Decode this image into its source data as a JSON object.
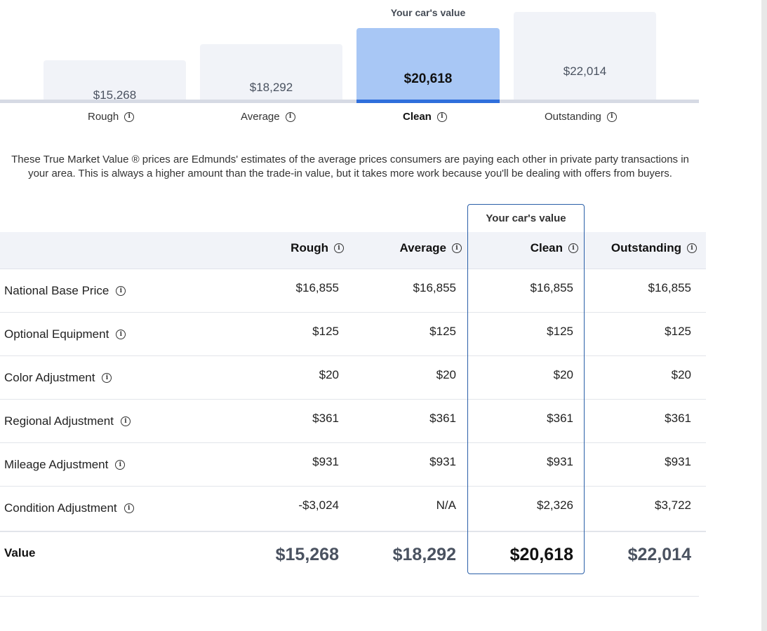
{
  "tiers": {
    "top_label": "Your car's value",
    "items": [
      {
        "label": "Rough",
        "price": "$15,268"
      },
      {
        "label": "Average",
        "price": "$18,292"
      },
      {
        "label": "Clean",
        "price": "$20,618"
      },
      {
        "label": "Outstanding",
        "price": "$22,014"
      }
    ],
    "selected": "Clean"
  },
  "description": "These True Market Value ® prices are Edmunds' estimates of the average prices consumers are paying each other in private party transactions in your area. This is always a higher amount than the trade-in value, but it takes more work because you'll be dealing with offers from buyers.",
  "table": {
    "highlight_label": "Your car's value",
    "columns": [
      "Rough",
      "Average",
      "Clean",
      "Outstanding"
    ],
    "rows": [
      {
        "label": "National Base Price",
        "values": [
          "$16,855",
          "$16,855",
          "$16,855",
          "$16,855"
        ]
      },
      {
        "label": "Optional Equipment",
        "values": [
          "$125",
          "$125",
          "$125",
          "$125"
        ]
      },
      {
        "label": "Color Adjustment",
        "values": [
          "$20",
          "$20",
          "$20",
          "$20"
        ]
      },
      {
        "label": "Regional Adjustment",
        "values": [
          "$361",
          "$361",
          "$361",
          "$361"
        ]
      },
      {
        "label": "Mileage Adjustment",
        "values": [
          "$931",
          "$931",
          "$931",
          "$931"
        ]
      },
      {
        "label": "Condition Adjustment",
        "values": [
          "-$3,024",
          "N/A",
          "$2,326",
          "$3,722"
        ]
      }
    ],
    "value_row": {
      "label": "Value",
      "values": [
        "$15,268",
        "$18,292",
        "$20,618",
        "$22,014"
      ]
    }
  },
  "icons": {
    "info": "info-circle-icon"
  },
  "colors": {
    "selected_bar": "#a8c7f5",
    "selected_underline": "#2f6fdc",
    "frame": "#2a5fa8"
  }
}
